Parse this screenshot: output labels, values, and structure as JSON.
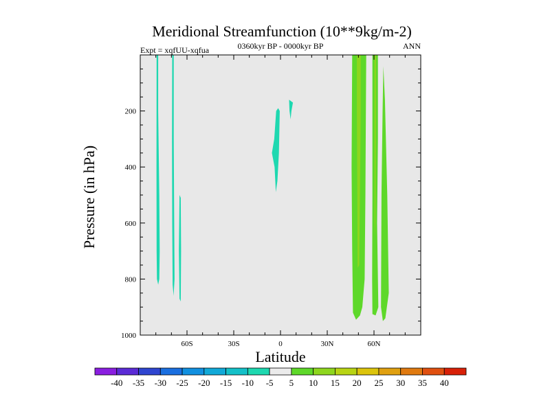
{
  "chart_data": {
    "type": "contour",
    "title": "Meridional Streamfunction (10**9kg/m-2)",
    "subtitle_left": "Expt = xqfUU-xqfua",
    "subtitle_center": "0360kyr BP - 0000kyr BP",
    "subtitle_right": "ANN",
    "xlabel": "Latitude",
    "ylabel": "Pressure (in hPa)",
    "xlim": [
      -90,
      90
    ],
    "ylim": [
      0,
      1000
    ],
    "x_ticks": [
      -60,
      -30,
      0,
      30,
      60
    ],
    "x_tick_labels": [
      "60S",
      "30S",
      "0",
      "30N",
      "60N"
    ],
    "y_ticks": [
      200,
      400,
      600,
      800,
      1000
    ],
    "y_tick_labels": [
      "200",
      "400",
      "600",
      "800",
      "1000"
    ],
    "colorbar": {
      "levels": [
        -40,
        -35,
        -30,
        -25,
        -20,
        -15,
        -10,
        -5,
        5,
        10,
        15,
        20,
        25,
        30,
        35,
        40
      ],
      "labels": [
        "-40",
        "-35",
        "-30",
        "-25",
        "-20",
        "-15",
        "-10",
        "-5",
        "5",
        "10",
        "15",
        "20",
        "25",
        "30",
        "35",
        "40"
      ],
      "colors": [
        "#8a1ee0",
        "#5b2bd6",
        "#2f45d0",
        "#1a6fe0",
        "#1190e0",
        "#11a9d8",
        "#14c0c8",
        "#1ed8b0",
        "#ebebeb",
        "#5ed82a",
        "#8ed61e",
        "#b8d414",
        "#dcc40c",
        "#e0a010",
        "#e07a10",
        "#e05010",
        "#d82008"
      ]
    },
    "background_color": "#e8e8e8",
    "regions": [
      {
        "name": "region-sh-cell-1",
        "value": -7.5,
        "color": "#1ed8b0",
        "points": [
          [
            -79.5,
            0
          ],
          [
            -78.5,
            0
          ],
          [
            -78.5,
            200
          ],
          [
            -77.8,
            500
          ],
          [
            -77.5,
            700
          ],
          [
            -77.8,
            800
          ],
          [
            -78.5,
            820
          ],
          [
            -79.3,
            800
          ],
          [
            -79.5,
            700
          ],
          [
            -79.6,
            400
          ]
        ]
      },
      {
        "name": "region-sh-cell-2",
        "value": -7.5,
        "color": "#1ed8b0",
        "points": [
          [
            -69.5,
            0
          ],
          [
            -68.5,
            0
          ],
          [
            -68.5,
            300
          ],
          [
            -68.2,
            600
          ],
          [
            -68,
            800
          ],
          [
            -68.6,
            860
          ],
          [
            -69.2,
            820
          ],
          [
            -69.5,
            600
          ],
          [
            -69.6,
            300
          ]
        ]
      },
      {
        "name": "region-sh-cell-3",
        "value": -7.5,
        "color": "#1ed8b0",
        "points": [
          [
            -64.8,
            500
          ],
          [
            -64,
            510
          ],
          [
            -63.8,
            700
          ],
          [
            -64,
            880
          ],
          [
            -64.8,
            870
          ],
          [
            -65.2,
            700
          ]
        ]
      },
      {
        "name": "region-tropic-cell-1",
        "value": -7.5,
        "color": "#1ed8b0",
        "points": [
          [
            -1.5,
            190
          ],
          [
            -0.5,
            200
          ],
          [
            -1,
            350
          ],
          [
            -2,
            450
          ],
          [
            -3,
            490
          ],
          [
            -3.8,
            400
          ],
          [
            -5.5,
            350
          ],
          [
            -4,
            300
          ],
          [
            -2.8,
            200
          ]
        ]
      },
      {
        "name": "region-tropic-cell-2",
        "value": -7.5,
        "color": "#1ed8b0",
        "points": [
          [
            5.5,
            160
          ],
          [
            8,
            170
          ],
          [
            7,
            200
          ],
          [
            6.5,
            230
          ],
          [
            5.8,
            200
          ]
        ]
      },
      {
        "name": "region-nh-cell-1",
        "value": 7.5,
        "color": "#5ed82a",
        "points": [
          [
            46,
            0
          ],
          [
            55,
            0
          ],
          [
            54.8,
            200
          ],
          [
            54.5,
            500
          ],
          [
            54,
            800
          ],
          [
            52.5,
            900
          ],
          [
            51,
            930
          ],
          [
            48.5,
            945
          ],
          [
            46.5,
            920
          ],
          [
            46,
            700
          ],
          [
            45.6,
            400
          ]
        ]
      },
      {
        "name": "region-nh-cell-1-core",
        "value": 12.5,
        "color": "#8ed61e",
        "points": [
          [
            49,
            0
          ],
          [
            51.5,
            0
          ],
          [
            51.5,
            200
          ],
          [
            51,
            500
          ],
          [
            50.5,
            750
          ],
          [
            49.5,
            760
          ],
          [
            49.3,
            500
          ],
          [
            49,
            200
          ]
        ]
      },
      {
        "name": "region-nh-cell-2",
        "value": 7.5,
        "color": "#5ed82a",
        "points": [
          [
            59,
            0
          ],
          [
            62.5,
            0
          ],
          [
            62.5,
            300
          ],
          [
            62,
            600
          ],
          [
            62.5,
            800
          ],
          [
            62.8,
            900
          ],
          [
            61,
            930
          ],
          [
            59,
            925
          ],
          [
            58.8,
            800
          ],
          [
            59,
            500
          ]
        ]
      },
      {
        "name": "region-nh-cell-2-core",
        "value": 12.5,
        "color": "#8ed61e",
        "points": [
          [
            60.3,
            0
          ],
          [
            61.3,
            0
          ],
          [
            61.2,
            300
          ],
          [
            61,
            500
          ],
          [
            60.8,
            650
          ],
          [
            60.4,
            600
          ],
          [
            60.3,
            300
          ]
        ]
      },
      {
        "name": "region-nh-cell-3",
        "value": 7.5,
        "color": "#5ed82a",
        "points": [
          [
            66,
            40
          ],
          [
            67,
            160
          ],
          [
            68.5,
            500
          ],
          [
            69.5,
            850
          ],
          [
            67.3,
            940
          ],
          [
            65.7,
            950
          ],
          [
            64.5,
            900
          ],
          [
            64.8,
            500
          ],
          [
            65.5,
            200
          ]
        ]
      }
    ]
  }
}
